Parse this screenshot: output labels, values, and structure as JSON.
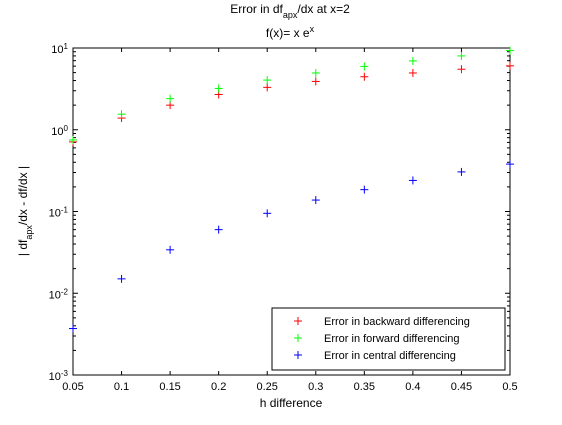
{
  "chart_data": {
    "type": "scatter",
    "title": "Error in df_apx/dx at x=2",
    "subtitle": "f(x)= x e^x",
    "xlabel": "h difference",
    "ylabel": "| df_apx/dx - df/dx |",
    "xlim": [
      0.05,
      0.5
    ],
    "ylim": [
      0.001,
      10
    ],
    "yscale": "log",
    "grid": false,
    "legend_position": "bottom-right",
    "x": [
      0.05,
      0.1,
      0.15,
      0.2,
      0.25,
      0.3,
      0.35,
      0.4,
      0.45,
      0.5
    ],
    "xticks": [
      "0.05",
      "0.1",
      "0.15",
      "0.2",
      "0.25",
      "0.3",
      "0.35",
      "0.4",
      "0.45",
      "0.5"
    ],
    "yticks": [
      {
        "value": 0.001,
        "base": "10",
        "exp": "-3"
      },
      {
        "value": 0.01,
        "base": "10",
        "exp": "-2"
      },
      {
        "value": 0.1,
        "base": "10",
        "exp": "-1"
      },
      {
        "value": 1,
        "base": "10",
        "exp": "0"
      },
      {
        "value": 10,
        "base": "10",
        "exp": "1"
      }
    ],
    "series": [
      {
        "name": "Error in backward differencing",
        "color": "#ff0000",
        "marker": "plus",
        "values": [
          0.71,
          1.39,
          2.0,
          2.7,
          3.3,
          3.9,
          4.45,
          4.95,
          5.5,
          6.05
        ]
      },
      {
        "name": "Error in forward differencing",
        "color": "#00ff00",
        "marker": "plus",
        "values": [
          0.75,
          1.55,
          2.4,
          3.2,
          4.05,
          4.95,
          5.95,
          6.95,
          8.0,
          9.3
        ]
      },
      {
        "name": "Error in central differencing",
        "color": "#0000ff",
        "marker": "plus",
        "values": [
          0.0037,
          0.015,
          0.034,
          0.06,
          0.095,
          0.138,
          0.185,
          0.24,
          0.305,
          0.38
        ]
      }
    ]
  }
}
